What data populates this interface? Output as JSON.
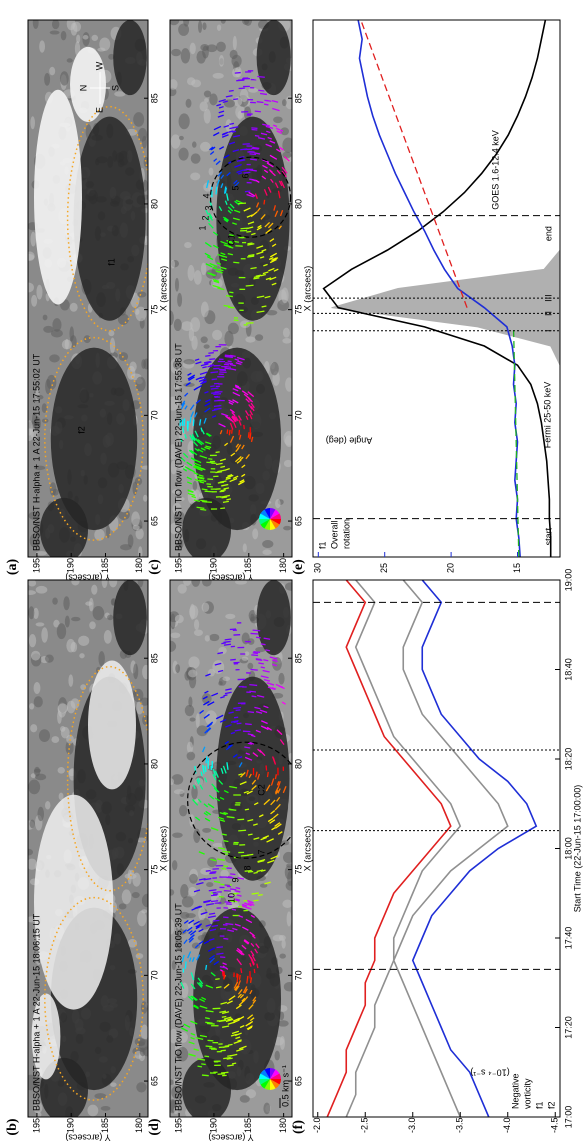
{
  "image_axes": {
    "xlim": [
      63.3,
      88.7
    ],
    "xticks": [
      65,
      70,
      75,
      80,
      85
    ],
    "ylim": [
      178.8,
      196.3
    ],
    "yticks": [
      195,
      190,
      185,
      180
    ],
    "xlabel": "X (arcsecs)",
    "ylabel": "Y (arcsecs)"
  },
  "image_panels": [
    {
      "label": "(a)",
      "title": "BBSO/NST H-alpha + 1 A 22-Jun-15 17:55:02 UT",
      "annotations": [
        "N",
        "S",
        "E",
        "W",
        "f2",
        "f1"
      ]
    },
    {
      "label": "(b)",
      "title": "BBSO/NST H-alpha + 1 A 22-Jun-15 18:06:15 UT",
      "annotations": []
    },
    {
      "label": "(c)",
      "title": "BBSO/NST TiO flow (DAVE) 22-Jun-15 17:55:38 UT",
      "annotations": [
        "C1",
        "1",
        "2",
        "3",
        "4",
        "5",
        "6"
      ]
    },
    {
      "label": "(d)",
      "title": "BBSO/NST TiO flow (DAVE) 22-Jun-15 18:05:39 UT",
      "annotations": [
        "C2",
        "7",
        "8",
        "9",
        "10",
        "0.5 km s⁻¹"
      ]
    }
  ],
  "chart_data": [
    {
      "type": "line",
      "label": "(e)",
      "xlim": [
        30,
        170
      ],
      "ylim": [
        11.8,
        30.4
      ],
      "yticks": [
        30,
        25,
        20,
        15
      ],
      "ylabel": "Angle (deg)",
      "axis_color": "#1f2fd6",
      "annotation_lines": [
        "f1",
        "Overall",
        "rotation"
      ],
      "vlines": [
        {
          "x": 40,
          "label": "start",
          "style": "dashed"
        },
        {
          "x": 119,
          "label": "end",
          "style": "dashed"
        },
        {
          "x": 89,
          "label": "I",
          "style": "dotted"
        },
        {
          "x": 93.5,
          "label": "II",
          "style": "dotted"
        },
        {
          "x": 97.5,
          "label": "III",
          "style": "dotted"
        }
      ],
      "series": [
        {
          "name": "Fermi 25-50 keV",
          "color": "#b0b0b0",
          "fill": true,
          "x": [
            30,
            35,
            40,
            45,
            50,
            55,
            60,
            65,
            70,
            75,
            80,
            85,
            90,
            95,
            100,
            105,
            110,
            115,
            120,
            125,
            130,
            135,
            140,
            145,
            150,
            155,
            160,
            165,
            170
          ],
          "values": [
            11.8,
            11.8,
            11.8,
            11.8,
            11.8,
            11.8,
            11.8,
            11.8,
            11.8,
            11.8,
            11.8,
            12.5,
            18,
            29,
            24,
            13,
            11.8,
            11.8,
            11.8,
            11.8,
            11.8,
            11.8,
            11.8,
            11.8,
            11.8,
            11.8,
            11.8,
            11.8,
            11.8
          ]
        },
        {
          "name": "GOES 1.6-12.4 keV",
          "color": "#000000",
          "x": [
            30,
            35,
            40,
            45,
            50,
            55,
            60,
            65,
            70,
            75,
            80,
            85,
            90,
            95,
            100,
            105,
            110,
            115,
            120,
            125,
            130,
            135,
            140,
            145,
            150,
            155,
            160,
            165,
            170
          ],
          "values": [
            12.5,
            12.5,
            12.6,
            12.6,
            12.7,
            12.8,
            13.0,
            13.2,
            13.5,
            14.0,
            15.0,
            17.5,
            22,
            28.5,
            29.6,
            27.5,
            24.8,
            22.5,
            20.6,
            19.0,
            17.7,
            16.6,
            15.7,
            15.0,
            14.4,
            13.9,
            13.5,
            13.2,
            12.9
          ]
        },
        {
          "color": "#1f2fd6",
          "x": [
            30,
            35,
            40,
            45,
            50,
            55,
            60,
            65,
            70,
            75,
            80,
            85,
            90,
            95,
            100,
            105,
            110,
            115,
            120,
            125,
            130,
            135,
            140,
            145,
            150,
            155,
            160,
            165,
            170
          ],
          "values": [
            14.8,
            14.9,
            15.1,
            15.0,
            15.2,
            15.1,
            15.0,
            15.2,
            15.1,
            15.3,
            15.2,
            15.4,
            15.8,
            17.5,
            19.5,
            20.5,
            21.3,
            22.0,
            22.8,
            23.5,
            24.2,
            24.8,
            25.4,
            25.9,
            26.3,
            26.6,
            26.9,
            26.7,
            27.0
          ]
        },
        {
          "color": "#e02020",
          "style": "dashed",
          "x": [
            95,
            170
          ],
          "values": [
            18.8,
            26.8
          ]
        },
        {
          "color": "#20b020",
          "style": "dashed",
          "x": [
            30,
            90
          ],
          "values": [
            14.9,
            15.3
          ]
        }
      ]
    },
    {
      "type": "line",
      "label": "(f)",
      "xlim": [
        0,
        120
      ],
      "xticks": [
        {
          "value": 0,
          "label": "17:00"
        },
        {
          "value": 20,
          "label": "17:20"
        },
        {
          "value": 40,
          "label": "17:40"
        },
        {
          "value": 60,
          "label": "18:00"
        },
        {
          "value": 80,
          "label": "18:20"
        },
        {
          "value": 100,
          "label": "18:40"
        },
        {
          "value": 120,
          "label": "19:00"
        }
      ],
      "xlabel": "Start Time (22-Jun-15 17:00:00)",
      "ylim": [
        -4.55,
        -1.95
      ],
      "yticks": [
        {
          "value": -2,
          "label": "-2.0"
        },
        -2.5,
        {
          "value": -3,
          "label": "-3.0"
        },
        -3.5,
        {
          "value": -4,
          "label": "-4.0"
        },
        -4.5
      ],
      "ylabel_lines": [
        "Negative",
        "vorticity"
      ],
      "unit": "(10⁻⁴ s⁻¹)",
      "vlines": [
        {
          "x": 33,
          "style": "dashed"
        },
        {
          "x": 115,
          "style": "dashed"
        },
        {
          "x": 64,
          "style": "dotted"
        },
        {
          "x": 82,
          "style": "dotted"
        }
      ],
      "series": [
        {
          "color": "#909090",
          "x": [
            0,
            5,
            10,
            15,
            20,
            25,
            30,
            35,
            40,
            45,
            50,
            55,
            60,
            65,
            70,
            75,
            80,
            85,
            90,
            95,
            100,
            105,
            110,
            115,
            120
          ],
          "values": [
            -2.3,
            -2.4,
            -2.4,
            -2.5,
            -2.6,
            -2.6,
            -2.7,
            -2.8,
            -2.8,
            -2.9,
            -3.0,
            -3.1,
            -3.3,
            -3.5,
            -3.4,
            -3.2,
            -3.0,
            -2.8,
            -2.7,
            -2.6,
            -2.5,
            -2.4,
            -2.5,
            -2.6,
            -2.4
          ]
        },
        {
          "color": "#909090",
          "x": [
            0,
            5,
            10,
            15,
            20,
            25,
            30,
            35,
            40,
            45,
            50,
            55,
            60,
            65,
            70,
            75,
            80,
            85,
            90,
            95,
            100,
            105,
            110,
            115,
            120
          ],
          "values": [
            -3.5,
            -3.4,
            -3.3,
            -3.2,
            -3.1,
            -3.0,
            -2.9,
            -2.8,
            -2.9,
            -3.0,
            -3.2,
            -3.4,
            -3.7,
            -4.0,
            -3.9,
            -3.7,
            -3.5,
            -3.3,
            -3.1,
            -3.0,
            -2.9,
            -2.9,
            -3.0,
            -3.1,
            -2.9
          ]
        },
        {
          "name": "f1",
          "color": "#e02020",
          "x": [
            0,
            5,
            10,
            15,
            20,
            25,
            30,
            35,
            40,
            45,
            50,
            55,
            60,
            65,
            70,
            75,
            80,
            85,
            90,
            95,
            100,
            105,
            110,
            115,
            120
          ],
          "values": [
            -2.1,
            -2.2,
            -2.3,
            -2.3,
            -2.4,
            -2.5,
            -2.5,
            -2.6,
            -2.6,
            -2.7,
            -2.8,
            -3.0,
            -3.2,
            -3.4,
            -3.3,
            -3.1,
            -2.9,
            -2.7,
            -2.6,
            -2.5,
            -2.4,
            -2.3,
            -2.4,
            -2.5,
            -2.3
          ]
        },
        {
          "name": "f2",
          "color": "#1f2fd6",
          "x": [
            0,
            5,
            10,
            15,
            20,
            25,
            30,
            35,
            40,
            45,
            50,
            55,
            60,
            65,
            70,
            75,
            80,
            85,
            90,
            95,
            100,
            105,
            110,
            115,
            120
          ],
          "values": [
            -3.8,
            -3.7,
            -3.6,
            -3.4,
            -3.3,
            -3.2,
            -3.1,
            -3.0,
            -3.1,
            -3.2,
            -3.4,
            -3.6,
            -3.9,
            -4.3,
            -4.2,
            -4.0,
            -3.7,
            -3.5,
            -3.3,
            -3.2,
            -3.1,
            -3.1,
            -3.2,
            -3.3,
            -3.1
          ]
        }
      ]
    }
  ]
}
